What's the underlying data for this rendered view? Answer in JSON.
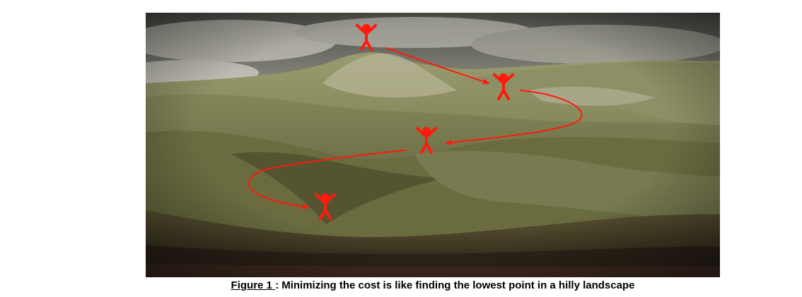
{
  "figure": {
    "caption_label": "Figure 1 ",
    "caption_text": ": Minimizing the cost is like finding the lowest point in a hilly landscape",
    "figure_color": "#ff1a0d",
    "sky_color": "#a9a89d",
    "hill_color": "#6b6d44"
  }
}
